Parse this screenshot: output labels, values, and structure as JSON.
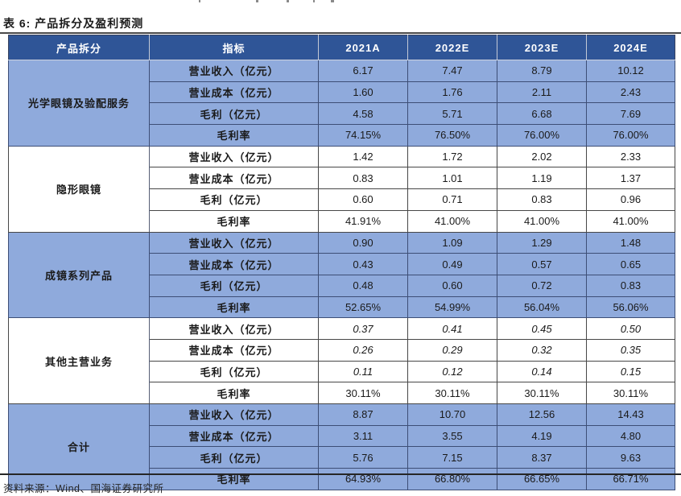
{
  "title": "表 6:  产品拆分及盈利预测",
  "source": "资料来源：Wind、国海证券研究所",
  "colors": {
    "header_bg": "#2F5597",
    "header_text": "#FFFFFF",
    "shaded_bg": "#8FAADC"
  },
  "table": {
    "headers": [
      "产品拆分",
      "指标",
      "2021A",
      "2022E",
      "2023E",
      "2024E"
    ],
    "groups": [
      {
        "name": "光学眼镜及验配服务",
        "shaded": true,
        "rows": [
          {
            "metric": "营业收入（亿元）",
            "values": [
              "6.17",
              "7.47",
              "8.79",
              "10.12"
            ],
            "italic": false
          },
          {
            "metric": "营业成本（亿元）",
            "values": [
              "1.60",
              "1.76",
              "2.11",
              "2.43"
            ],
            "italic": false
          },
          {
            "metric": "毛利（亿元）",
            "values": [
              "4.58",
              "5.71",
              "6.68",
              "7.69"
            ],
            "italic": false
          },
          {
            "metric": "毛利率",
            "values": [
              "74.15%",
              "76.50%",
              "76.00%",
              "76.00%"
            ],
            "italic": false
          }
        ]
      },
      {
        "name": "隐形眼镜",
        "shaded": false,
        "rows": [
          {
            "metric": "营业收入（亿元）",
            "values": [
              "1.42",
              "1.72",
              "2.02",
              "2.33"
            ],
            "italic": false
          },
          {
            "metric": "营业成本（亿元）",
            "values": [
              "0.83",
              "1.01",
              "1.19",
              "1.37"
            ],
            "italic": false
          },
          {
            "metric": "毛利（亿元）",
            "values": [
              "0.60",
              "0.71",
              "0.83",
              "0.96"
            ],
            "italic": false
          },
          {
            "metric": "毛利率",
            "values": [
              "41.91%",
              "41.00%",
              "41.00%",
              "41.00%"
            ],
            "italic": false
          }
        ]
      },
      {
        "name": "成镜系列产品",
        "shaded": true,
        "rows": [
          {
            "metric": "营业收入（亿元）",
            "values": [
              "0.90",
              "1.09",
              "1.29",
              "1.48"
            ],
            "italic": false
          },
          {
            "metric": "营业成本（亿元）",
            "values": [
              "0.43",
              "0.49",
              "0.57",
              "0.65"
            ],
            "italic": false
          },
          {
            "metric": "毛利（亿元）",
            "values": [
              "0.48",
              "0.60",
              "0.72",
              "0.83"
            ],
            "italic": false
          },
          {
            "metric": "毛利率",
            "values": [
              "52.65%",
              "54.99%",
              "56.04%",
              "56.06%"
            ],
            "italic": false
          }
        ]
      },
      {
        "name": "其他主营业务",
        "shaded": false,
        "rows": [
          {
            "metric": "营业收入（亿元）",
            "values": [
              "0.37",
              "0.41",
              "0.45",
              "0.50"
            ],
            "italic": true
          },
          {
            "metric": "营业成本（亿元）",
            "values": [
              "0.26",
              "0.29",
              "0.32",
              "0.35"
            ],
            "italic": true
          },
          {
            "metric": "毛利（亿元）",
            "values": [
              "0.11",
              "0.12",
              "0.14",
              "0.15"
            ],
            "italic": true
          },
          {
            "metric": "毛利率",
            "values": [
              "30.11%",
              "30.11%",
              "30.11%",
              "30.11%"
            ],
            "italic": false
          }
        ]
      },
      {
        "name": "合计",
        "shaded": true,
        "rows": [
          {
            "metric": "营业收入（亿元）",
            "values": [
              "8.87",
              "10.70",
              "12.56",
              "14.43"
            ],
            "italic": false
          },
          {
            "metric": "营业成本（亿元）",
            "values": [
              "3.11",
              "3.55",
              "4.19",
              "4.80"
            ],
            "italic": false
          },
          {
            "metric": "毛利（亿元）",
            "values": [
              "5.76",
              "7.15",
              "8.37",
              "9.63"
            ],
            "italic": false
          },
          {
            "metric": "毛利率",
            "values": [
              "64.93%",
              "66.80%",
              "66.65%",
              "66.71%"
            ],
            "italic": false
          }
        ]
      }
    ]
  }
}
